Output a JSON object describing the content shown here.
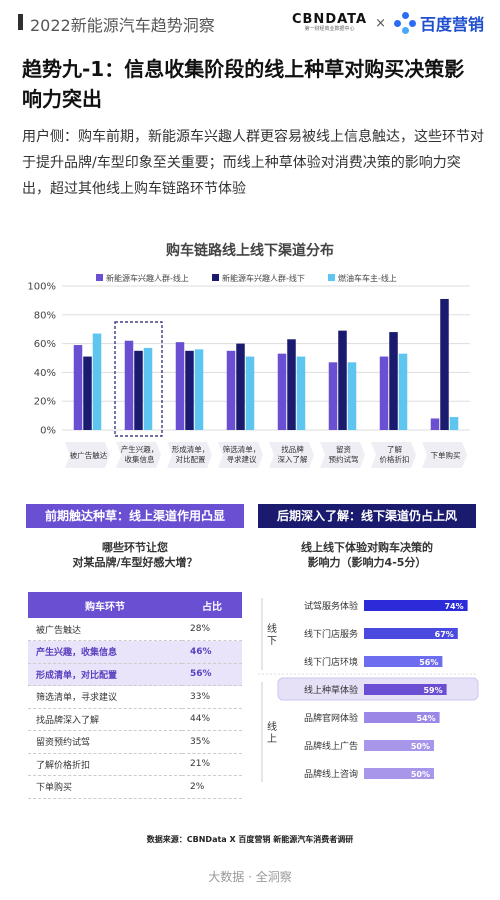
{
  "header": {
    "series_title": "2022新能源汽车趋势洞察",
    "cbn_logo": "CBNDATA",
    "cbn_sub": "第一财经商业数据中心",
    "times": "×",
    "baidu_logo": "百度营销"
  },
  "headline": "趋势九-1：信息收集阶段的线上种草对购买决策影响力突出",
  "intro": "用户侧：购车前期，新能源车兴趣人群更容易被线上信息触达，这些环节对于提升品牌/车型印象至关重要；而线上种草体验对消费决策的影响力突出，超过其他线上购车链路环节体验",
  "chart_data": [
    {
      "type": "bar",
      "title": "购车链路线上线下渠道分布",
      "categories": [
        "被广告触达",
        "产生兴趣，收集信息",
        "形成清单，对比配置",
        "筛选清单，寻求建议",
        "找品牌深入了解",
        "留资预约试驾",
        "了解价格折扣",
        "下单购买"
      ],
      "category_lines": [
        [
          "被广告触达"
        ],
        [
          "产生兴趣，",
          "收集信息"
        ],
        [
          "形成清单，",
          "对比配置"
        ],
        [
          "筛选清单，",
          "寻求建议"
        ],
        [
          "找品牌",
          "深入了解"
        ],
        [
          "留资",
          "预约试驾"
        ],
        [
          "了解",
          "价格折扣"
        ],
        [
          "下单购买"
        ]
      ],
      "series": [
        {
          "name": "新能源车兴趣人群-线上",
          "color": "#6a4fd2",
          "values": [
            59,
            62,
            61,
            55,
            53,
            47,
            51,
            8
          ]
        },
        {
          "name": "新能源车兴趣人群-线下",
          "color": "#1a1a6e",
          "values": [
            51,
            55,
            55,
            60,
            63,
            69,
            68,
            91
          ]
        },
        {
          "name": "燃油车车主-线上",
          "color": "#5ec4f0",
          "values": [
            67,
            57,
            56,
            51,
            51,
            47,
            53,
            9
          ]
        }
      ],
      "y_ticks": [
        "0%",
        "20%",
        "40%",
        "60%",
        "80%",
        "100%"
      ],
      "ylim": [
        0,
        100
      ],
      "legend": "top",
      "highlight_category": "产生兴趣，收集信息"
    },
    {
      "type": "table",
      "title": "哪些环节让您对某品牌/车型好感大增？",
      "title_lines": [
        "哪些环节让您",
        "对某品牌/车型好感大增？"
      ],
      "columns": [
        "购车环节",
        "占比"
      ],
      "rows": [
        {
          "stage": "被广告触达",
          "value": "28%",
          "highlight": false
        },
        {
          "stage": "产生兴趣，收集信息",
          "value": "46%",
          "highlight": true
        },
        {
          "stage": "形成清单，对比配置",
          "value": "56%",
          "highlight": true
        },
        {
          "stage": "筛选清单，寻求建议",
          "value": "33%",
          "highlight": false
        },
        {
          "stage": "找品牌深入了解",
          "value": "44%",
          "highlight": false
        },
        {
          "stage": "留资预约试驾",
          "value": "35%",
          "highlight": false
        },
        {
          "stage": "了解价格折扣",
          "value": "21%",
          "highlight": false
        },
        {
          "stage": "下单购买",
          "value": "2%",
          "highlight": false
        }
      ]
    },
    {
      "type": "bar",
      "orientation": "horizontal",
      "title": "线上线下体验对购车决策的影响力（影响力4-5分）",
      "title_lines": [
        "线上线下体验对购车决策的",
        "影响力（影响力4-5分）"
      ],
      "groups": [
        {
          "name": "线下",
          "items": [
            {
              "label": "试驾服务体验",
              "value": 74,
              "display": "74%",
              "color": "#2b2bd9"
            },
            {
              "label": "线下门店服务",
              "value": 67,
              "display": "67%",
              "color": "#4a4ae0"
            },
            {
              "label": "线下门店环境",
              "value": 56,
              "display": "56%",
              "color": "#6d6df0"
            }
          ]
        },
        {
          "name": "线上",
          "items": [
            {
              "label": "线上种草体验",
              "value": 59,
              "display": "59%",
              "color": "#6a4fd2",
              "highlight": true
            },
            {
              "label": "品牌官网体验",
              "value": 54,
              "display": "54%",
              "color": "#9b88e6"
            },
            {
              "label": "品牌线上广告",
              "value": 50,
              "display": "50%",
              "color": "#a796ea"
            },
            {
              "label": "品牌线上咨询",
              "value": 50,
              "display": "50%",
              "color": "#a796ea"
            }
          ]
        }
      ]
    }
  ],
  "panels": {
    "left_header": "前期触达种草：线上渠道作用凸显",
    "right_header": "后期深入了解：线下渠道仍占上风"
  },
  "source": "数据来源：CBNData X 百度营销 新能源汽车消费者调研",
  "footer": "大数据 · 全洞察"
}
